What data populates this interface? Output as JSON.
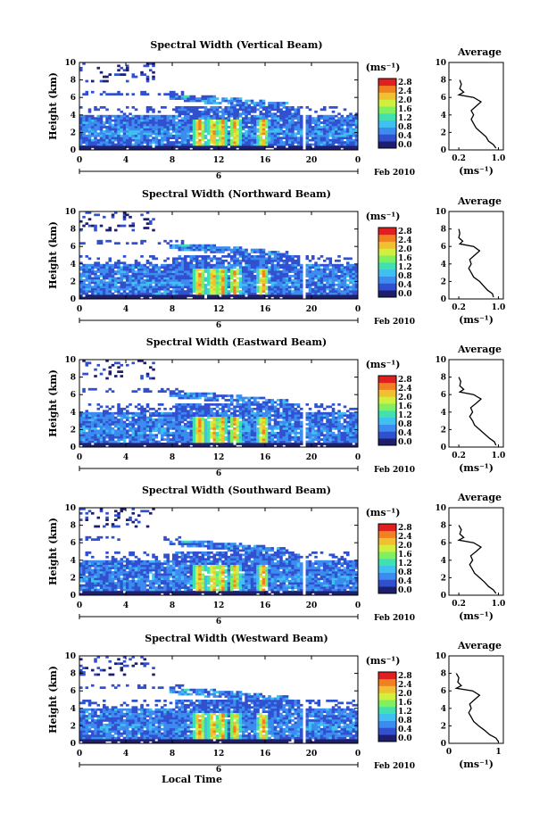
{
  "chart_data": [
    {
      "type": "heatmap",
      "title": "Spectral Width (Vertical Beam)",
      "ylabel": "Height (km)",
      "xlim": [
        0,
        24
      ],
      "ylim": [
        0,
        10
      ],
      "x_ticks": [
        "0",
        "4",
        "8",
        "12",
        "16",
        "20",
        "0"
      ],
      "y_ticks": [
        "0",
        "2",
        "4",
        "6",
        "8",
        "10"
      ],
      "date_marker": "6",
      "date_label": "Feb 2010",
      "colorbar": {
        "unit": "(ms⁻¹)",
        "ticks": [
          "2.8",
          "2.4",
          "2.0",
          "1.6",
          "1.2",
          "0.8",
          "0.4",
          "0.0"
        ]
      },
      "average": {
        "title": "Average",
        "xlabel": "(ms⁻¹)",
        "x_ticks": [
          "0.2",
          "1.0"
        ],
        "height": [
          0.2,
          0.6,
          1.0,
          1.5,
          2.0,
          2.5,
          3.0,
          3.5,
          4.0,
          4.5,
          5.0,
          5.5,
          6.0,
          6.3,
          6.6,
          7.0,
          7.5,
          8.0
        ],
        "width": [
          0.95,
          0.9,
          0.8,
          0.75,
          0.65,
          0.55,
          0.5,
          0.45,
          0.5,
          0.45,
          0.55,
          0.65,
          0.5,
          0.2,
          0.3,
          0.22,
          0.25,
          0.22
        ]
      }
    },
    {
      "type": "heatmap",
      "title": "Spectral Width (Northward Beam)",
      "ylabel": "Height (km)",
      "xlim": [
        0,
        24
      ],
      "ylim": [
        0,
        10
      ],
      "x_ticks": [
        "0",
        "4",
        "8",
        "12",
        "16",
        "20",
        "0"
      ],
      "y_ticks": [
        "0",
        "2",
        "4",
        "6",
        "8",
        "10"
      ],
      "date_marker": "6",
      "date_label": "Feb 2010",
      "colorbar": {
        "unit": "(ms⁻¹)",
        "ticks": [
          "2.8",
          "2.4",
          "2.0",
          "1.6",
          "1.2",
          "0.8",
          "0.4",
          "0.0"
        ]
      },
      "average": {
        "title": "Average",
        "xlabel": "(ms⁻¹)",
        "x_ticks": [
          "0.2",
          "1.0"
        ],
        "height": [
          0.2,
          0.6,
          1.0,
          1.5,
          2.0,
          2.5,
          3.0,
          3.5,
          4.0,
          4.5,
          5.0,
          5.5,
          6.0,
          6.3,
          6.6,
          7.0,
          7.5,
          8.0
        ],
        "width": [
          0.9,
          0.88,
          0.78,
          0.7,
          0.62,
          0.5,
          0.45,
          0.4,
          0.45,
          0.42,
          0.52,
          0.62,
          0.5,
          0.22,
          0.28,
          0.2,
          0.22,
          0.2
        ]
      }
    },
    {
      "type": "heatmap",
      "title": "Spectral Width (Eastward Beam)",
      "ylabel": "Height (km)",
      "xlim": [
        0,
        24
      ],
      "ylim": [
        0,
        10
      ],
      "x_ticks": [
        "0",
        "4",
        "8",
        "12",
        "16",
        "20",
        "0"
      ],
      "y_ticks": [
        "0",
        "2",
        "4",
        "6",
        "8",
        "10"
      ],
      "date_marker": "6",
      "date_label": "Feb 2010",
      "colorbar": {
        "unit": "(ms⁻¹)",
        "ticks": [
          "2.8",
          "2.4",
          "2.0",
          "1.6",
          "1.2",
          "0.8",
          "0.4",
          "0.0"
        ]
      },
      "average": {
        "title": "Average",
        "xlabel": "(ms⁻¹)",
        "x_ticks": [
          "0.2",
          "1.0"
        ],
        "height": [
          0.2,
          0.6,
          1.0,
          1.5,
          2.0,
          2.5,
          3.0,
          3.5,
          4.0,
          4.5,
          5.0,
          5.5,
          6.0,
          6.3,
          6.6,
          7.0,
          7.5,
          8.0
        ],
        "width": [
          0.95,
          0.92,
          0.82,
          0.72,
          0.62,
          0.52,
          0.48,
          0.42,
          0.48,
          0.44,
          0.55,
          0.65,
          0.5,
          0.22,
          0.3,
          0.22,
          0.24,
          0.2
        ]
      }
    },
    {
      "type": "heatmap",
      "title": "Spectral Width (Southward Beam)",
      "ylabel": "Height (km)",
      "xlim": [
        0,
        24
      ],
      "ylim": [
        0,
        10
      ],
      "x_ticks": [
        "0",
        "4",
        "8",
        "12",
        "16",
        "20",
        "0"
      ],
      "y_ticks": [
        "0",
        "2",
        "4",
        "6",
        "8",
        "10"
      ],
      "date_marker": "6",
      "date_label": "Feb 2010",
      "colorbar": {
        "unit": "(ms⁻¹)",
        "ticks": [
          "2.8",
          "2.4",
          "2.0",
          "1.6",
          "1.2",
          "0.8",
          "0.4",
          "0.0"
        ]
      },
      "average": {
        "title": "Average",
        "xlabel": "(ms⁻¹)",
        "x_ticks": [
          "0.2",
          "1.0"
        ],
        "height": [
          0.2,
          0.6,
          1.0,
          1.5,
          2.0,
          2.5,
          3.0,
          3.5,
          4.0,
          4.5,
          5.0,
          5.5,
          6.0,
          6.3,
          6.6,
          7.0,
          7.5,
          8.0
        ],
        "width": [
          0.95,
          0.9,
          0.8,
          0.72,
          0.62,
          0.52,
          0.47,
          0.42,
          0.48,
          0.44,
          0.55,
          0.65,
          0.5,
          0.2,
          0.3,
          0.22,
          0.25,
          0.2
        ]
      }
    },
    {
      "type": "heatmap",
      "title": "Spectral Width (Westward Beam)",
      "ylabel": "Height (km)",
      "xlabel": "Local Time",
      "xlim": [
        0,
        24
      ],
      "ylim": [
        0,
        10
      ],
      "x_ticks": [
        "0",
        "4",
        "8",
        "12",
        "16",
        "20",
        "0"
      ],
      "y_ticks": [
        "0",
        "2",
        "4",
        "6",
        "8",
        "10"
      ],
      "date_marker": "6",
      "date_label": "Feb 2010",
      "colorbar": {
        "unit": "(ms⁻¹)",
        "ticks": [
          "2.8",
          "2.4",
          "2.0",
          "1.6",
          "1.2",
          "0.8",
          "0.4",
          "0.0"
        ]
      },
      "average": {
        "title": "Average",
        "xlabel": "(ms⁻¹)",
        "x_ticks": [
          "0",
          "1"
        ],
        "xlim": [
          0,
          1.1
        ],
        "height": [
          0.2,
          0.6,
          1.0,
          1.5,
          2.0,
          2.5,
          3.0,
          3.5,
          4.0,
          4.5,
          5.0,
          5.5,
          6.0,
          6.3,
          6.6,
          7.0,
          7.5,
          8.0
        ],
        "width": [
          1.0,
          0.95,
          0.82,
          0.72,
          0.6,
          0.5,
          0.45,
          0.4,
          0.45,
          0.42,
          0.52,
          0.62,
          0.48,
          0.15,
          0.25,
          0.18,
          0.2,
          0.15
        ]
      }
    }
  ],
  "colors": {
    "scale": [
      "#1e1e6e",
      "#3050d0",
      "#3c8cf0",
      "#40c0f0",
      "#40e0b0",
      "#80f060",
      "#d0f040",
      "#f0c030",
      "#f08020",
      "#e02020"
    ]
  }
}
